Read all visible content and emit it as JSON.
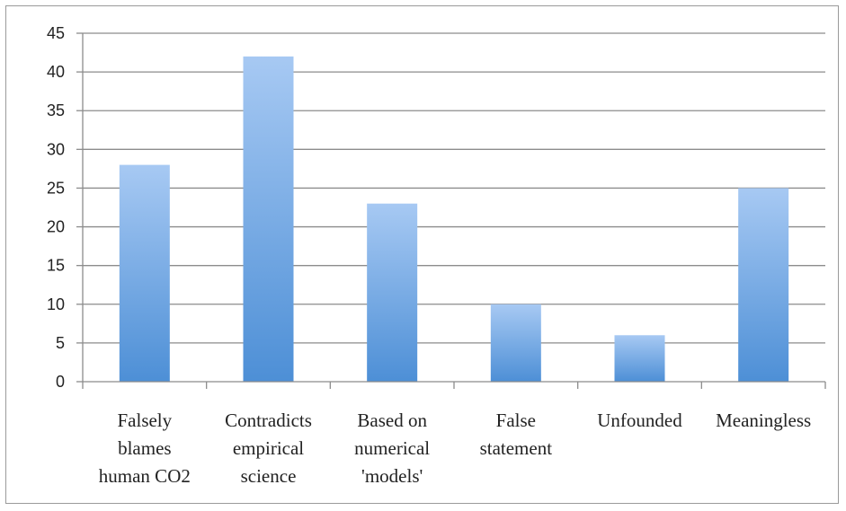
{
  "chart_data": {
    "type": "bar",
    "title": "",
    "xlabel": "",
    "ylabel": "",
    "ylim": [
      0,
      45
    ],
    "ytick_step": 5,
    "grid": true,
    "legend": "none",
    "categories": [
      [
        "Falsely",
        "blames",
        "human CO2"
      ],
      [
        "Contradicts",
        "empirical",
        "science"
      ],
      [
        "Based on",
        "numerical",
        "'models'"
      ],
      [
        "False",
        "statement"
      ],
      [
        "Unfounded"
      ],
      [
        "Meaningless"
      ]
    ],
    "values": [
      28,
      42,
      23,
      10,
      6,
      25
    ],
    "colors": {
      "bar_top": "#a7c9f3",
      "bar_bottom": "#4d8fd6",
      "grid": "#8c8c8c",
      "axis": "#8c8c8c"
    }
  }
}
